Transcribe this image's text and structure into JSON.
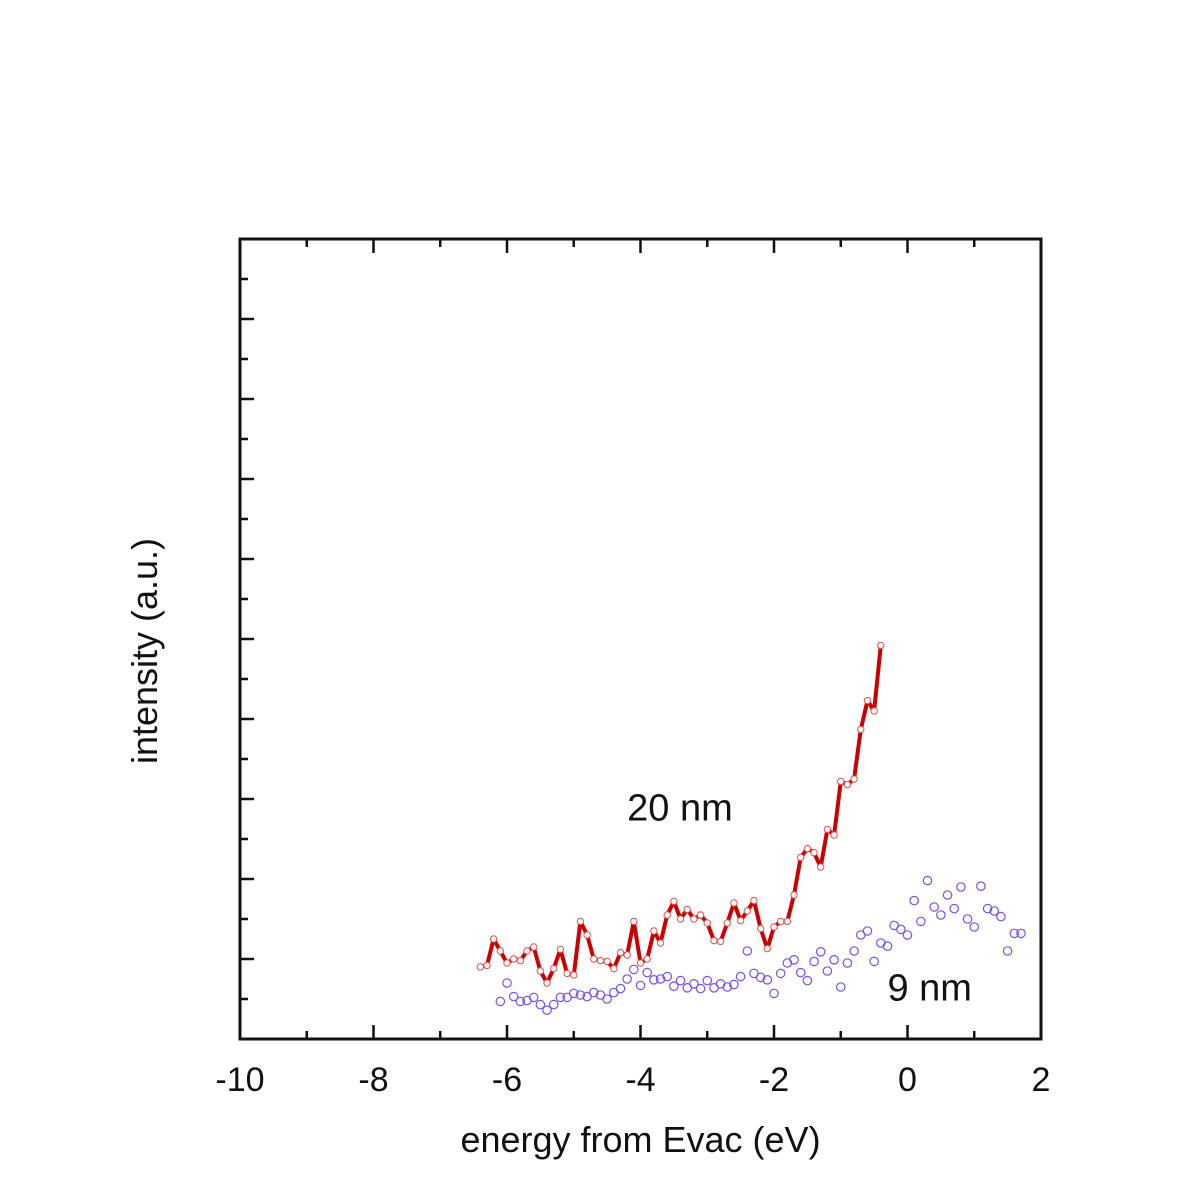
{
  "chart_data": {
    "type": "line",
    "xlabel": "energy from Evac (eV)",
    "ylabel": "intensity (a.u.)",
    "xlim": [
      -10,
      2
    ],
    "ylim": [
      0,
      10
    ],
    "x_ticks": [
      -10,
      -8,
      -6,
      -4,
      -2,
      0,
      2
    ],
    "x_tick_labels": [
      "-10",
      "-8",
      "-6",
      "-4",
      "-2",
      "0",
      "2"
    ],
    "y_tick_labels_shown": false,
    "grid": false,
    "legend": "none",
    "series": [
      {
        "style": "line-with-markers",
        "color": "#cc0000",
        "marker_color": "#e05050",
        "points": [
          [
            -6.4,
            0.9
          ],
          [
            -6.3,
            0.92
          ],
          [
            -6.2,
            1.25
          ],
          [
            -6.1,
            1.1
          ],
          [
            -6.0,
            0.95
          ],
          [
            -5.9,
            1.0
          ],
          [
            -5.8,
            0.98
          ],
          [
            -5.7,
            1.1
          ],
          [
            -5.6,
            1.15
          ],
          [
            -5.5,
            0.85
          ],
          [
            -5.4,
            0.7
          ],
          [
            -5.3,
            0.88
          ],
          [
            -5.2,
            1.12
          ],
          [
            -5.1,
            0.82
          ],
          [
            -5.0,
            0.8
          ],
          [
            -4.9,
            1.47
          ],
          [
            -4.8,
            1.3
          ],
          [
            -4.7,
            1.0
          ],
          [
            -4.6,
            0.98
          ],
          [
            -4.5,
            0.97
          ],
          [
            -4.4,
            0.88
          ],
          [
            -4.3,
            1.08
          ],
          [
            -4.2,
            1.05
          ],
          [
            -4.1,
            1.47
          ],
          [
            -4.0,
            0.95
          ],
          [
            -3.9,
            1.0
          ],
          [
            -3.8,
            1.35
          ],
          [
            -3.7,
            1.2
          ],
          [
            -3.6,
            1.55
          ],
          [
            -3.5,
            1.72
          ],
          [
            -3.4,
            1.5
          ],
          [
            -3.3,
            1.62
          ],
          [
            -3.2,
            1.5
          ],
          [
            -3.1,
            1.55
          ],
          [
            -3.0,
            1.45
          ],
          [
            -2.9,
            1.23
          ],
          [
            -2.8,
            1.22
          ],
          [
            -2.7,
            1.45
          ],
          [
            -2.6,
            1.7
          ],
          [
            -2.5,
            1.48
          ],
          [
            -2.4,
            1.6
          ],
          [
            -2.3,
            1.73
          ],
          [
            -2.2,
            1.38
          ],
          [
            -2.1,
            1.13
          ],
          [
            -2.0,
            1.4
          ],
          [
            -1.9,
            1.47
          ],
          [
            -1.8,
            1.47
          ],
          [
            -1.7,
            1.8
          ],
          [
            -1.6,
            2.27
          ],
          [
            -1.5,
            2.38
          ],
          [
            -1.4,
            2.33
          ],
          [
            -1.3,
            2.15
          ],
          [
            -1.2,
            2.62
          ],
          [
            -1.1,
            2.55
          ],
          [
            -1.0,
            3.22
          ],
          [
            -0.9,
            3.18
          ],
          [
            -0.8,
            3.25
          ],
          [
            -0.7,
            3.87
          ],
          [
            -0.6,
            4.23
          ],
          [
            -0.5,
            4.1
          ],
          [
            -0.4,
            4.92
          ]
        ]
      },
      {
        "style": "open-circles",
        "color": "#7a4ff0",
        "points": [
          [
            -6.1,
            0.47
          ],
          [
            -6.0,
            0.7
          ],
          [
            -5.9,
            0.53
          ],
          [
            -5.8,
            0.47
          ],
          [
            -5.7,
            0.48
          ],
          [
            -5.6,
            0.52
          ],
          [
            -5.5,
            0.43
          ],
          [
            -5.4,
            0.36
          ],
          [
            -5.3,
            0.43
          ],
          [
            -5.2,
            0.52
          ],
          [
            -5.1,
            0.52
          ],
          [
            -5.0,
            0.57
          ],
          [
            -4.9,
            0.55
          ],
          [
            -4.8,
            0.53
          ],
          [
            -4.7,
            0.58
          ],
          [
            -4.6,
            0.55
          ],
          [
            -4.5,
            0.5
          ],
          [
            -4.4,
            0.58
          ],
          [
            -4.3,
            0.63
          ],
          [
            -4.2,
            0.75
          ],
          [
            -4.1,
            0.87
          ],
          [
            -4.0,
            0.67
          ],
          [
            -3.9,
            0.83
          ],
          [
            -3.8,
            0.74
          ],
          [
            -3.7,
            0.75
          ],
          [
            -3.6,
            0.78
          ],
          [
            -3.5,
            0.66
          ],
          [
            -3.4,
            0.73
          ],
          [
            -3.3,
            0.64
          ],
          [
            -3.2,
            0.69
          ],
          [
            -3.1,
            0.63
          ],
          [
            -3.0,
            0.73
          ],
          [
            -2.9,
            0.64
          ],
          [
            -2.8,
            0.69
          ],
          [
            -2.7,
            0.65
          ],
          [
            -2.6,
            0.68
          ],
          [
            -2.5,
            0.78
          ],
          [
            -2.4,
            1.1
          ],
          [
            -2.3,
            0.82
          ],
          [
            -2.2,
            0.77
          ],
          [
            -2.1,
            0.74
          ],
          [
            -2.0,
            0.57
          ],
          [
            -1.9,
            0.82
          ],
          [
            -1.8,
            0.95
          ],
          [
            -1.7,
            0.99
          ],
          [
            -1.6,
            0.83
          ],
          [
            -1.5,
            0.73
          ],
          [
            -1.4,
            0.97
          ],
          [
            -1.3,
            1.09
          ],
          [
            -1.2,
            0.85
          ],
          [
            -1.1,
            0.99
          ],
          [
            -1.0,
            0.65
          ],
          [
            -0.9,
            0.95
          ],
          [
            -0.8,
            1.1
          ],
          [
            -0.7,
            1.3
          ],
          [
            -0.6,
            1.35
          ],
          [
            -0.5,
            0.97
          ],
          [
            -0.4,
            1.2
          ],
          [
            -0.3,
            1.16
          ],
          [
            -0.2,
            1.42
          ],
          [
            -0.1,
            1.37
          ],
          [
            0.0,
            1.3
          ],
          [
            0.1,
            1.73
          ],
          [
            0.2,
            1.47
          ],
          [
            0.3,
            1.98
          ],
          [
            0.4,
            1.65
          ],
          [
            0.5,
            1.55
          ],
          [
            0.6,
            1.8
          ],
          [
            0.7,
            1.63
          ],
          [
            0.8,
            1.9
          ],
          [
            0.9,
            1.5
          ],
          [
            1.0,
            1.4
          ],
          [
            1.1,
            1.91
          ],
          [
            1.2,
            1.63
          ],
          [
            1.3,
            1.6
          ],
          [
            1.4,
            1.53
          ],
          [
            1.5,
            1.1
          ],
          [
            1.6,
            1.32
          ],
          [
            1.7,
            1.32
          ]
        ]
      }
    ],
    "annotations": [
      {
        "text": "20 nm",
        "x": -4.2,
        "y": 2.73
      },
      {
        "text": "9 nm",
        "x": -0.3,
        "y": 0.48
      }
    ]
  }
}
